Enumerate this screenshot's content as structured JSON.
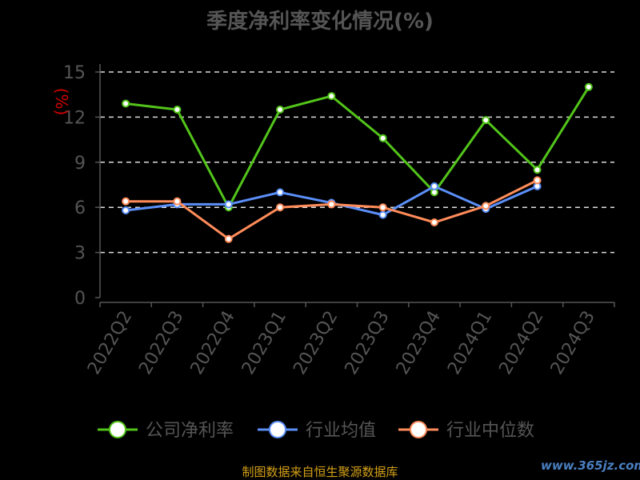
{
  "chart_data": {
    "type": "line",
    "title": "季度净利率变化情况(%)",
    "ylabel": "(%)",
    "xlabel": "",
    "categories": [
      "2022Q2",
      "2022Q3",
      "2022Q4",
      "2023Q1",
      "2023Q2",
      "2023Q3",
      "2023Q4",
      "2024Q1",
      "2024Q2",
      "2024Q3"
    ],
    "ylim": [
      0,
      15
    ],
    "yticks": [
      0,
      3,
      6,
      9,
      12,
      15
    ],
    "grid": "horizontal dashed",
    "legend_position": "bottom",
    "series": [
      {
        "name": "公司净利率",
        "color": "#52c41a",
        "values": [
          12.9,
          12.5,
          6.0,
          12.5,
          13.4,
          10.6,
          7.0,
          11.8,
          8.5,
          14.0
        ]
      },
      {
        "name": "行业均值",
        "color": "#5b8ff9",
        "values": [
          5.8,
          6.2,
          6.2,
          7.0,
          6.3,
          5.5,
          7.4,
          5.9,
          7.4,
          null
        ]
      },
      {
        "name": "行业中位数",
        "color": "#ff8c5a",
        "values": [
          6.4,
          6.4,
          3.9,
          6.0,
          6.2,
          6.0,
          5.0,
          6.1,
          7.8,
          null
        ]
      }
    ]
  },
  "footer": {
    "source": "制图数据来自恒生聚源数据库",
    "watermark": "www.365jz.com"
  }
}
